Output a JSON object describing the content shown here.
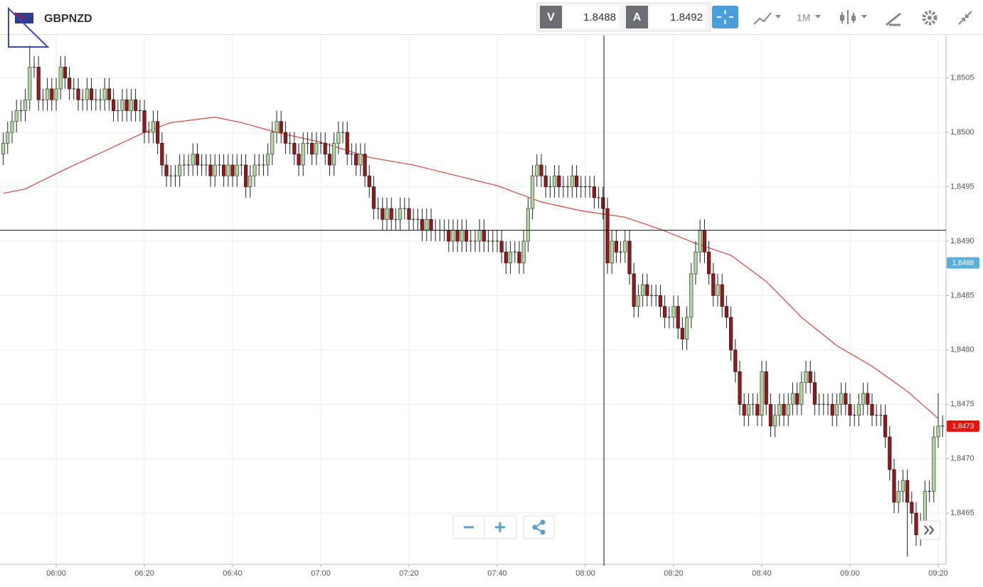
{
  "header": {
    "symbol": "GBPNZD",
    "sell_label": "V",
    "sell_price": 1.8488,
    "buy_label": "A",
    "buy_price": 1.8492,
    "timeframe": "1M"
  },
  "chart_data": {
    "type": "candlestick",
    "up_color": "#b7d3a8",
    "down_color": "#8e1d1d",
    "grid": true,
    "xlim": [
      347.26,
      561.77
    ],
    "xticks": [
      {
        "value": 360,
        "label": "06:00"
      },
      {
        "value": 380,
        "label": "06:20"
      },
      {
        "value": 400,
        "label": "06:40"
      },
      {
        "value": 420,
        "label": "07:00"
      },
      {
        "value": 440,
        "label": "07:20"
      },
      {
        "value": 460,
        "label": "07:40"
      },
      {
        "value": 480,
        "label": "08:00"
      },
      {
        "value": 500,
        "label": "08:20"
      },
      {
        "value": 520,
        "label": "08:40"
      },
      {
        "value": 540,
        "label": "09:00"
      },
      {
        "value": 560,
        "label": "09:20"
      }
    ],
    "ylim": [
      1.84603,
      1.85089
    ],
    "yticks": [
      {
        "value": 1.8465,
        "label": "1,8465"
      },
      {
        "value": 1.847,
        "label": "1,8470"
      },
      {
        "value": 1.8475,
        "label": "1,8475"
      },
      {
        "value": 1.848,
        "label": "1,8480"
      },
      {
        "value": 1.8485,
        "label": "1,8485"
      },
      {
        "value": 1.849,
        "label": "1,8490"
      },
      {
        "value": 1.8495,
        "label": "1,8495"
      },
      {
        "value": 1.85,
        "label": "1,8500"
      },
      {
        "value": 1.8505,
        "label": "1,8505"
      }
    ],
    "x": [
      348,
      349,
      350,
      351,
      352,
      353,
      354,
      355,
      356,
      357,
      358,
      359,
      360,
      361,
      362,
      363,
      364,
      365,
      366,
      367,
      368,
      369,
      370,
      371,
      372,
      373,
      374,
      375,
      376,
      377,
      378,
      379,
      380,
      381,
      382,
      383,
      384,
      385,
      386,
      387,
      388,
      389,
      390,
      391,
      392,
      393,
      394,
      395,
      396,
      397,
      398,
      399,
      400,
      401,
      402,
      403,
      404,
      405,
      406,
      407,
      408,
      409,
      410,
      411,
      412,
      413,
      414,
      415,
      416,
      417,
      418,
      419,
      420,
      421,
      422,
      423,
      424,
      425,
      426,
      427,
      428,
      429,
      430,
      431,
      432,
      433,
      434,
      435,
      436,
      437,
      438,
      439,
      440,
      441,
      442,
      443,
      444,
      445,
      446,
      447,
      448,
      449,
      450,
      451,
      452,
      453,
      454,
      455,
      456,
      457,
      458,
      459,
      460,
      461,
      462,
      463,
      464,
      465,
      466,
      467,
      468,
      469,
      470,
      471,
      472,
      473,
      474,
      475,
      476,
      477,
      478,
      479,
      480,
      481,
      482,
      483,
      484,
      485,
      486,
      487,
      488,
      489,
      490,
      491,
      492,
      493,
      494,
      495,
      496,
      497,
      498,
      499,
      500,
      501,
      502,
      503,
      504,
      505,
      506,
      507,
      508,
      509,
      510,
      511,
      512,
      513,
      514,
      515,
      516,
      517,
      518,
      519,
      520,
      521,
      522,
      523,
      524,
      525,
      526,
      527,
      528,
      529,
      530,
      531,
      532,
      533,
      534,
      535,
      536,
      537,
      538,
      539,
      540,
      541,
      542,
      543,
      544,
      545,
      546,
      547,
      548,
      549,
      550,
      551,
      552,
      553,
      554,
      555,
      556,
      557,
      558,
      559,
      560,
      561
    ],
    "open": [
      1.8498,
      1.8499,
      1.85,
      1.8501,
      1.8502,
      1.8502,
      1.8503,
      1.8506,
      1.8506,
      1.8503,
      1.8503,
      1.8504,
      1.8503,
      1.8504,
      1.8506,
      1.8505,
      1.8504,
      1.8504,
      1.8503,
      1.8503,
      1.8504,
      1.8503,
      1.8503,
      1.8503,
      1.8504,
      1.8503,
      1.8502,
      1.8502,
      1.8503,
      1.8502,
      1.8503,
      1.8502,
      1.8502,
      1.85,
      1.85,
      1.8501,
      1.8499,
      1.8497,
      1.8496,
      1.8496,
      1.8496,
      1.8497,
      1.8497,
      1.8497,
      1.8498,
      1.8497,
      1.8497,
      1.8497,
      1.8496,
      1.8497,
      1.8497,
      1.8496,
      1.8497,
      1.8496,
      1.8497,
      1.8497,
      1.8495,
      1.8496,
      1.8497,
      1.8497,
      1.8497,
      1.8498,
      1.85,
      1.8501,
      1.85,
      1.8499,
      1.8499,
      1.8498,
      1.8497,
      1.8499,
      1.8499,
      1.8498,
      1.8499,
      1.8499,
      1.8498,
      1.8497,
      1.8499,
      1.85,
      1.85,
      1.8498,
      1.8498,
      1.8497,
      1.8498,
      1.8496,
      1.8495,
      1.8493,
      1.8493,
      1.8492,
      1.8493,
      1.8492,
      1.8492,
      1.8493,
      1.8493,
      1.8492,
      1.8492,
      1.8492,
      1.8491,
      1.8492,
      1.8491,
      1.8491,
      1.8491,
      1.8491,
      1.849,
      1.8491,
      1.849,
      1.8491,
      1.849,
      1.849,
      1.849,
      1.8491,
      1.849,
      1.849,
      1.849,
      1.849,
      1.8489,
      1.8488,
      1.8489,
      1.8489,
      1.8488,
      1.849,
      1.8493,
      1.8496,
      1.8497,
      1.8496,
      1.8495,
      1.8495,
      1.8496,
      1.8495,
      1.8495,
      1.8495,
      1.8496,
      1.8495,
      1.8495,
      1.8495,
      1.8495,
      1.8494,
      1.8494,
      1.8493,
      1.8488,
      1.849,
      1.8489,
      1.8489,
      1.849,
      1.8487,
      1.8484,
      1.8485,
      1.8486,
      1.8485,
      1.8485,
      1.8485,
      1.8484,
      1.8483,
      1.8483,
      1.8484,
      1.8482,
      1.8481,
      1.8483,
      1.8487,
      1.8489,
      1.8491,
      1.8489,
      1.8487,
      1.8485,
      1.8486,
      1.8484,
      1.8483,
      1.848,
      1.8478,
      1.8475,
      1.8474,
      1.8475,
      1.8475,
      1.8474,
      1.8478,
      1.8475,
      1.8473,
      1.8474,
      1.8475,
      1.8474,
      1.8475,
      1.8476,
      1.8475,
      1.8477,
      1.8478,
      1.8477,
      1.8475,
      1.8475,
      1.8475,
      1.8475,
      1.8474,
      1.8475,
      1.8476,
      1.8475,
      1.8474,
      1.8474,
      1.8475,
      1.8476,
      1.8475,
      1.8474,
      1.8474,
      1.8474,
      1.8472,
      1.8469,
      1.8466,
      1.8467,
      1.8468,
      1.8466,
      1.8465,
      1.8463,
      1.8464,
      1.8467,
      1.8467,
      1.8472,
      1.8473
    ],
    "high": [
      1.85,
      1.8501,
      1.8502,
      1.8503,
      1.8503,
      1.8504,
      1.8508,
      1.8507,
      1.8507,
      1.8504,
      1.8505,
      1.8505,
      1.8505,
      1.8507,
      1.8507,
      1.8506,
      1.8505,
      1.8505,
      1.8504,
      1.8505,
      1.8505,
      1.8504,
      1.8504,
      1.8505,
      1.8505,
      1.8504,
      1.8503,
      1.8504,
      1.8504,
      1.8504,
      1.8504,
      1.8503,
      1.8503,
      1.8501,
      1.8502,
      1.8502,
      1.85,
      1.8498,
      1.8497,
      1.8497,
      1.8498,
      1.8498,
      1.8498,
      1.8499,
      1.8499,
      1.8498,
      1.8498,
      1.8498,
      1.8498,
      1.8498,
      1.8498,
      1.8498,
      1.8498,
      1.8498,
      1.8498,
      1.8498,
      1.8497,
      1.8498,
      1.8498,
      1.8498,
      1.8499,
      1.8501,
      1.8502,
      1.8502,
      1.8501,
      1.85,
      1.85,
      1.8499,
      1.85,
      1.85,
      1.85,
      1.85,
      1.85,
      1.85,
      1.8499,
      1.85,
      1.8501,
      1.8501,
      1.8501,
      1.8499,
      1.8499,
      1.8499,
      1.8499,
      1.8497,
      1.8496,
      1.8494,
      1.8494,
      1.8494,
      1.8494,
      1.8493,
      1.8494,
      1.8494,
      1.8494,
      1.8493,
      1.8493,
      1.8493,
      1.8493,
      1.8493,
      1.8492,
      1.8492,
      1.8492,
      1.8492,
      1.8492,
      1.8492,
      1.8492,
      1.8492,
      1.8491,
      1.8491,
      1.8492,
      1.8492,
      1.8491,
      1.8491,
      1.8491,
      1.8491,
      1.849,
      1.849,
      1.849,
      1.849,
      1.8491,
      1.8494,
      1.8497,
      1.8498,
      1.8498,
      1.8497,
      1.8496,
      1.8497,
      1.8497,
      1.8496,
      1.8496,
      1.8497,
      1.8497,
      1.8496,
      1.8496,
      1.8496,
      1.8496,
      1.8495,
      1.8495,
      1.8494,
      1.8491,
      1.8491,
      1.849,
      1.8491,
      1.8491,
      1.8488,
      1.8486,
      1.8487,
      1.8487,
      1.8486,
      1.8486,
      1.8486,
      1.8485,
      1.8484,
      1.8485,
      1.8485,
      1.8483,
      1.8484,
      1.8488,
      1.849,
      1.8492,
      1.8492,
      1.849,
      1.8488,
      1.8487,
      1.8487,
      1.8485,
      1.8484,
      1.8481,
      1.8479,
      1.8476,
      1.8476,
      1.8476,
      1.8476,
      1.8479,
      1.8479,
      1.8476,
      1.8475,
      1.8476,
      1.8476,
      1.8476,
      1.8477,
      1.8477,
      1.8478,
      1.8479,
      1.8479,
      1.8478,
      1.8476,
      1.8476,
      1.8476,
      1.8476,
      1.8476,
      1.8477,
      1.8477,
      1.8476,
      1.8475,
      1.8476,
      1.8477,
      1.8477,
      1.8476,
      1.8475,
      1.8475,
      1.8475,
      1.8473,
      1.847,
      1.8468,
      1.8469,
      1.8469,
      1.8467,
      1.8466,
      1.8465,
      1.8468,
      1.8468,
      1.8473,
      1.8476,
      1.8474
    ],
    "low": [
      1.8497,
      1.8498,
      1.8499,
      1.85,
      1.8501,
      1.8501,
      1.8502,
      1.8505,
      1.8502,
      1.8502,
      1.8502,
      1.8502,
      1.8502,
      1.8503,
      1.8504,
      1.8503,
      1.8503,
      1.8502,
      1.8502,
      1.8502,
      1.8502,
      1.8502,
      1.8502,
      1.8502,
      1.8502,
      1.8501,
      1.8501,
      1.8501,
      1.8501,
      1.8501,
      1.8501,
      1.8501,
      1.8499,
      1.8499,
      1.8499,
      1.8498,
      1.8496,
      1.8495,
      1.8495,
      1.8495,
      1.8495,
      1.8496,
      1.8496,
      1.8496,
      1.8496,
      1.8496,
      1.8496,
      1.8495,
      1.8495,
      1.8496,
      1.8495,
      1.8495,
      1.8495,
      1.8495,
      1.8496,
      1.8494,
      1.8494,
      1.8495,
      1.8496,
      1.8496,
      1.8496,
      1.8497,
      1.8499,
      1.8499,
      1.8498,
      1.8498,
      1.8497,
      1.8496,
      1.8496,
      1.8498,
      1.8497,
      1.8497,
      1.8498,
      1.8497,
      1.8496,
      1.8496,
      1.8498,
      1.8499,
      1.8497,
      1.8497,
      1.8496,
      1.8496,
      1.8495,
      1.8494,
      1.8492,
      1.8492,
      1.8491,
      1.8491,
      1.8491,
      1.8491,
      1.8491,
      1.8492,
      1.8491,
      1.8491,
      1.8491,
      1.849,
      1.849,
      1.849,
      1.849,
      1.849,
      1.849,
      1.8489,
      1.8489,
      1.8489,
      1.8489,
      1.8489,
      1.8489,
      1.8489,
      1.8489,
      1.8489,
      1.8489,
      1.8489,
      1.8489,
      1.8488,
      1.8487,
      1.8487,
      1.8488,
      1.8487,
      1.8487,
      1.8489,
      1.8492,
      1.8495,
      1.8495,
      1.8494,
      1.8494,
      1.8494,
      1.8494,
      1.8494,
      1.8494,
      1.8494,
      1.8494,
      1.8494,
      1.8494,
      1.8494,
      1.8493,
      1.8493,
      1.8492,
      1.8487,
      1.8487,
      1.8488,
      1.8488,
      1.8488,
      1.8486,
      1.8483,
      1.8483,
      1.8484,
      1.8484,
      1.8484,
      1.8484,
      1.8483,
      1.8482,
      1.8482,
      1.8482,
      1.8481,
      1.848,
      1.848,
      1.8482,
      1.8486,
      1.8488,
      1.8488,
      1.8486,
      1.8484,
      1.8484,
      1.8483,
      1.8482,
      1.8479,
      1.8477,
      1.8474,
      1.8473,
      1.8473,
      1.8474,
      1.8473,
      1.8473,
      1.8474,
      1.8472,
      1.8472,
      1.8473,
      1.8473,
      1.8473,
      1.8474,
      1.8474,
      1.8474,
      1.8476,
      1.8476,
      1.8474,
      1.8474,
      1.8474,
      1.8474,
      1.8473,
      1.8473,
      1.8474,
      1.8474,
      1.8473,
      1.8473,
      1.8473,
      1.8474,
      1.8474,
      1.8473,
      1.8473,
      1.8473,
      1.8471,
      1.8468,
      1.8465,
      1.8465,
      1.8466,
      1.8461,
      1.8464,
      1.8462,
      1.8462,
      1.8463,
      1.8466,
      1.8466,
      1.8471,
      1.8472
    ],
    "close": [
      1.8499,
      1.85,
      1.8501,
      1.8502,
      1.8502,
      1.8503,
      1.8506,
      1.8506,
      1.8503,
      1.8503,
      1.8504,
      1.8503,
      1.8504,
      1.8506,
      1.8505,
      1.8504,
      1.8504,
      1.8503,
      1.8503,
      1.8504,
      1.8503,
      1.8503,
      1.8503,
      1.8504,
      1.8503,
      1.8502,
      1.8502,
      1.8503,
      1.8502,
      1.8503,
      1.8502,
      1.8502,
      1.85,
      1.85,
      1.8501,
      1.8499,
      1.8497,
      1.8496,
      1.8496,
      1.8496,
      1.8497,
      1.8497,
      1.8497,
      1.8498,
      1.8497,
      1.8497,
      1.8497,
      1.8496,
      1.8497,
      1.8497,
      1.8496,
      1.8497,
      1.8496,
      1.8497,
      1.8497,
      1.8495,
      1.8496,
      1.8497,
      1.8497,
      1.8497,
      1.8498,
      1.85,
      1.8501,
      1.85,
      1.8499,
      1.8499,
      1.8498,
      1.8497,
      1.8499,
      1.8499,
      1.8498,
      1.8499,
      1.8499,
      1.8498,
      1.8497,
      1.8499,
      1.85,
      1.85,
      1.8498,
      1.8498,
      1.8497,
      1.8498,
      1.8496,
      1.8495,
      1.8493,
      1.8493,
      1.8492,
      1.8493,
      1.8492,
      1.8492,
      1.8493,
      1.8493,
      1.8492,
      1.8492,
      1.8492,
      1.8491,
      1.8492,
      1.8491,
      1.8491,
      1.8491,
      1.8491,
      1.849,
      1.8491,
      1.849,
      1.8491,
      1.849,
      1.849,
      1.849,
      1.8491,
      1.849,
      1.849,
      1.849,
      1.849,
      1.8489,
      1.8488,
      1.8489,
      1.8489,
      1.8488,
      1.849,
      1.8493,
      1.8496,
      1.8497,
      1.8496,
      1.8495,
      1.8495,
      1.8496,
      1.8495,
      1.8495,
      1.8495,
      1.8496,
      1.8495,
      1.8495,
      1.8495,
      1.8495,
      1.8494,
      1.8494,
      1.8493,
      1.8488,
      1.849,
      1.8489,
      1.8489,
      1.849,
      1.8487,
      1.8484,
      1.8485,
      1.8486,
      1.8485,
      1.8485,
      1.8485,
      1.8484,
      1.8483,
      1.8483,
      1.8484,
      1.8482,
      1.8481,
      1.8483,
      1.8487,
      1.8489,
      1.8491,
      1.8489,
      1.8487,
      1.8485,
      1.8486,
      1.8484,
      1.8483,
      1.848,
      1.8478,
      1.8475,
      1.8474,
      1.8475,
      1.8475,
      1.8474,
      1.8478,
      1.8475,
      1.8473,
      1.8474,
      1.8475,
      1.8474,
      1.8475,
      1.8476,
      1.8475,
      1.8477,
      1.8478,
      1.8477,
      1.8475,
      1.8475,
      1.8475,
      1.8475,
      1.8474,
      1.8475,
      1.8476,
      1.8475,
      1.8474,
      1.8474,
      1.8475,
      1.8476,
      1.8475,
      1.8474,
      1.8474,
      1.8474,
      1.8472,
      1.8469,
      1.8466,
      1.8467,
      1.8468,
      1.8466,
      1.8465,
      1.8463,
      1.8464,
      1.8467,
      1.8467,
      1.8472,
      1.8473,
      1.8473
    ],
    "ma": {
      "color": "#d9443c",
      "x": [
        348,
        353,
        362,
        370,
        380,
        386,
        396,
        402,
        410,
        420,
        431,
        441,
        450,
        460,
        470,
        479,
        489,
        497,
        505,
        513,
        521,
        529,
        537,
        545,
        553,
        560
      ],
      "values": [
        1.84944,
        1.84948,
        1.84966,
        1.84981,
        1.85,
        1.85009,
        1.85014,
        1.85009,
        1.85,
        1.84991,
        1.84977,
        1.8497,
        1.84961,
        1.84951,
        1.84936,
        1.84928,
        1.84922,
        1.84911,
        1.84898,
        1.84887,
        1.84863,
        1.8483,
        1.84804,
        1.84785,
        1.84762,
        1.84737
      ]
    },
    "crosshair": {
      "x": 484.2,
      "y": 1.8491
    },
    "price_markers": [
      {
        "value": 1.8488,
        "label": "1,8488",
        "color": "#5bb0d8"
      },
      {
        "value": 1.8473,
        "label": "1,8473",
        "color": "#e8150f"
      }
    ]
  }
}
